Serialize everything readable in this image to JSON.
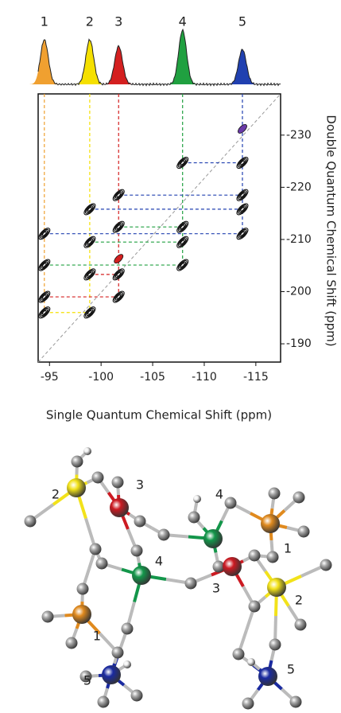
{
  "chart_data": {
    "type": "dq_nmr",
    "xlabel": "Single Quantum Chemical Shift (ppm)",
    "ylabel": "Double Quantum Chemical Shift (ppm)",
    "xlim": [
      -93.9,
      -117.4
    ],
    "xticks": [
      -95,
      -100,
      -105,
      -110,
      -115
    ],
    "ylim": [
      -186.5,
      -237.9
    ],
    "yticks": [
      -190,
      -200,
      -210,
      -220,
      -230
    ],
    "peaks": [
      {
        "label": "1",
        "x": -94.5,
        "height": 56,
        "color": "#f0a030"
      },
      {
        "label": "2",
        "x": -98.9,
        "height": 56,
        "color": "#f5e000"
      },
      {
        "label": "3",
        "x": -101.7,
        "height": 48,
        "color": "#d42020"
      },
      {
        "label": "4",
        "x": -107.9,
        "height": 68,
        "color": "#20a040"
      },
      {
        "label": "5",
        "x": -113.7,
        "height": 44,
        "color": "#2040b0"
      }
    ],
    "correlations": [
      {
        "x": [
          -94.5,
          -98.9
        ],
        "y": -196.0,
        "color": "#f5e000"
      },
      {
        "x": [
          -94.5,
          -101.7
        ],
        "y": -199.0,
        "color": "#d42020"
      },
      {
        "x": [
          -98.9,
          -101.7
        ],
        "y": -203.3,
        "color": "#d42020"
      },
      {
        "x": [
          -94.5,
          -107.9
        ],
        "y": -205.1,
        "color": "#20a040"
      },
      {
        "x": [
          -101.7
        ],
        "y": -206.3,
        "color": "#d42020"
      },
      {
        "x": [
          -98.9,
          -107.9
        ],
        "y": -209.5,
        "color": "#20a040"
      },
      {
        "x": [
          -94.5,
          -113.7
        ],
        "y": -211.1,
        "color": "#2040b0"
      },
      {
        "x": [
          -101.7,
          -107.9
        ],
        "y": -212.4,
        "color": "#20a040"
      },
      {
        "x": [
          -98.9,
          -113.7
        ],
        "y": -215.8,
        "color": "#2040b0"
      },
      {
        "x": [
          -101.7,
          -113.7
        ],
        "y": -218.5,
        "color": "#2040b0"
      },
      {
        "x": [
          -107.9,
          -113.7
        ],
        "y": -224.7,
        "color": "#2040b0"
      },
      {
        "x": [
          -113.7
        ],
        "y": -231.2,
        "color": "#6a3aa8"
      }
    ]
  },
  "structure_labels": [
    "2",
    "3",
    "4",
    "4",
    "1",
    "1",
    "3",
    "2",
    "5",
    "5"
  ]
}
